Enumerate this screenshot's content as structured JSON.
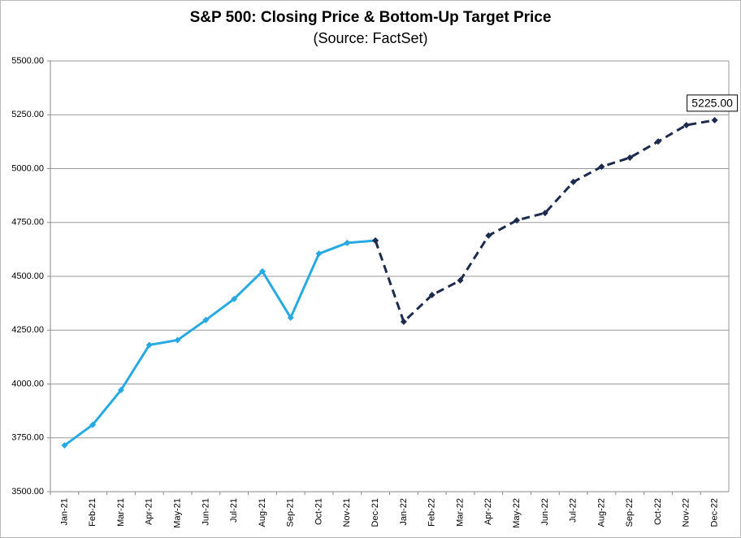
{
  "chart_data": {
    "type": "line",
    "title": "S&P 500: Closing Price & Bottom-Up Target Price",
    "subtitle": "(Source: FactSet)",
    "categories": [
      "Jan-21",
      "Feb-21",
      "Mar-21",
      "Apr-21",
      "May-21",
      "Jun-21",
      "Jul-21",
      "Aug-21",
      "Sep-21",
      "Oct-21",
      "Nov-21",
      "Dec-21",
      "Jan-22",
      "Feb-22",
      "Mar-22",
      "Apr-22",
      "May-22",
      "Jun-22",
      "Jul-22",
      "Aug-22",
      "Sep-22",
      "Oct-22",
      "Nov-22",
      "Dec-22"
    ],
    "series": [
      {
        "color": "#27a9e1",
        "dashed": false,
        "values": [
          3715,
          3811,
          3972,
          4181,
          4204,
          4297,
          4395,
          4523,
          4308,
          4605,
          4655,
          4666,
          null,
          null,
          null,
          null,
          null,
          null,
          null,
          null,
          null,
          null,
          null,
          null
        ]
      },
      {
        "color": "#1c2a4d",
        "dashed": true,
        "values": [
          null,
          null,
          null,
          null,
          null,
          null,
          null,
          null,
          null,
          null,
          null,
          4666,
          4289,
          4413,
          4481,
          4689,
          4760,
          4794,
          4938,
          5009,
          5051,
          5126,
          5202,
          5225
        ],
        "value_labels": [
          null,
          null,
          null,
          null,
          null,
          null,
          null,
          null,
          null,
          null,
          null,
          null,
          null,
          null,
          null,
          null,
          null,
          null,
          null,
          null,
          null,
          null,
          null,
          "5225.00"
        ]
      }
    ],
    "ylim": [
      3500,
      5500
    ],
    "yticks": [
      {
        "value": 3500,
        "label": "3500.00"
      },
      {
        "value": 3750,
        "label": "3750.00"
      },
      {
        "value": 4000,
        "label": "4000.00"
      },
      {
        "value": 4250,
        "label": "4250.00"
      },
      {
        "value": 4500,
        "label": "4500.00"
      },
      {
        "value": 4750,
        "label": "4750.00"
      },
      {
        "value": 5000,
        "label": "5000.00"
      },
      {
        "value": 5250,
        "label": "5250.00"
      },
      {
        "value": 5500,
        "label": "5500.00"
      }
    ],
    "grid": true
  }
}
